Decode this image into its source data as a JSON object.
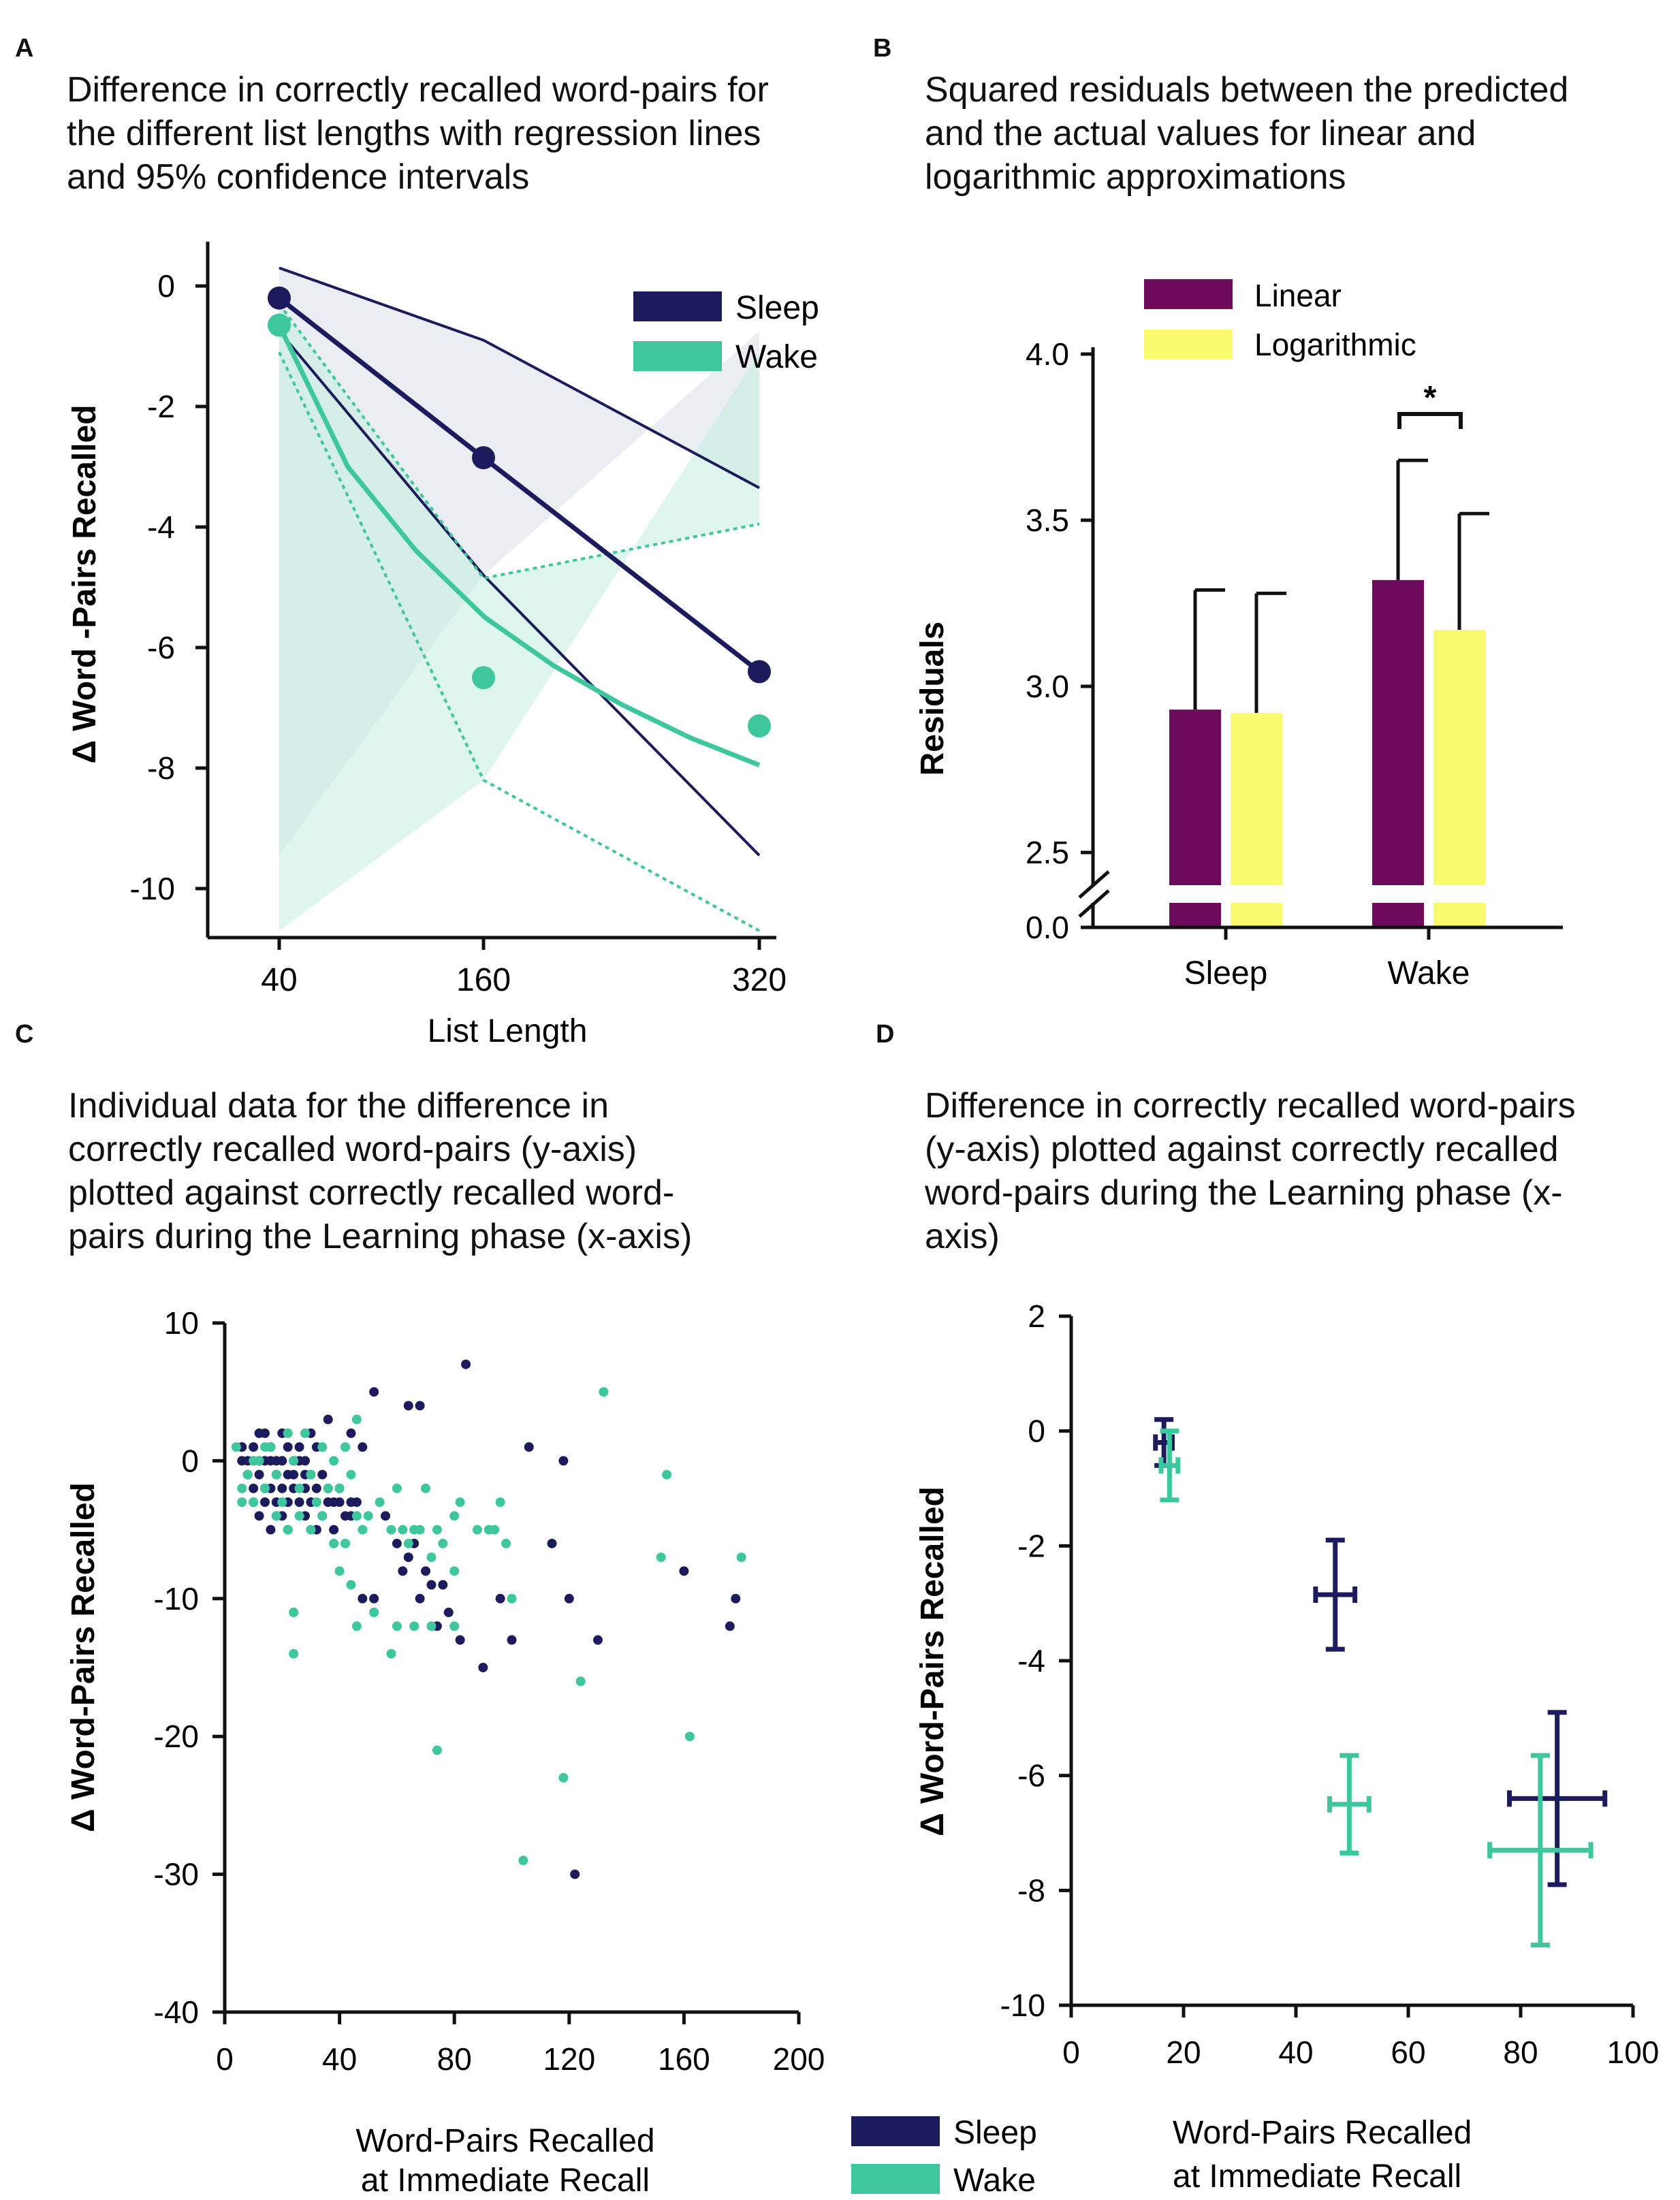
{
  "colors": {
    "sleep": "#1b1b5e",
    "wake": "#3ec79d",
    "linear": "#6d0a5b",
    "logarithmic": "#fafa6e",
    "axis": "#111111"
  },
  "panels": {
    "A": {
      "letter": "A",
      "title": "Difference in correctly recalled word-pairs for\nthe different list lengths with regression lines\nand 95% confidence intervals",
      "chart_data": {
        "type": "line",
        "xlabel": "List Length",
        "ylabel": "Δ Word -Pairs Recalled",
        "categories": [
          "40",
          "160",
          "320"
        ],
        "ylim": [
          -10.8,
          0.8
        ],
        "yticks": [
          "0",
          "-2",
          "-4",
          "-6",
          "-8",
          "-10"
        ],
        "ytick_values": [
          0,
          -2,
          -4,
          -6,
          -8,
          -10
        ],
        "legend": [
          "Sleep",
          "Wake"
        ],
        "series": [
          {
            "name": "Sleep",
            "means": [
              -0.2,
              -2.85,
              -6.4
            ],
            "regression": [
              -0.2,
              -2.85,
              -6.4
            ],
            "ci_upper": [
              0.3,
              -0.9,
              -3.35
            ],
            "ci_lower": [
              -0.75,
              -4.8,
              -9.45
            ]
          },
          {
            "name": "Wake",
            "means": [
              -0.65,
              -6.5,
              -7.3
            ],
            "regression_curve": [
              [
                40,
                -0.65
              ],
              [
                80,
                -3.0
              ],
              [
                120,
                -4.4
              ],
              [
                160,
                -5.5
              ],
              [
                200,
                -6.3
              ],
              [
                240,
                -6.95
              ],
              [
                280,
                -7.5
              ],
              [
                320,
                -7.95
              ]
            ],
            "ci_upper": [
              -0.3,
              -4.85,
              -3.95
            ],
            "ci_lower": [
              -1.1,
              -8.2,
              -10.7
            ]
          }
        ]
      }
    },
    "B": {
      "letter": "B",
      "title": "Squared residuals between the predicted\nand the actual values for linear and\nlogarithmic approximations",
      "chart_data": {
        "type": "bar",
        "ylabel": "Residuals",
        "categories": [
          "Sleep",
          "Wake"
        ],
        "yticks": [
          "4.0",
          "3.5",
          "3.0",
          "2.5",
          "0.0"
        ],
        "ytick_values": [
          4.0,
          3.5,
          3.0,
          2.5,
          0.0
        ],
        "ylim_break": [
          0.0,
          2.5
        ],
        "ylim": [
          2.28,
          4.0
        ],
        "series": [
          {
            "name": "Linear",
            "values": [
              2.93,
              3.32
            ],
            "errors": [
              0.36,
              0.36
            ]
          },
          {
            "name": "Logarithmic",
            "values": [
              2.92,
              3.17
            ],
            "errors": [
              0.36,
              0.35
            ]
          }
        ],
        "annotation": "*"
      }
    },
    "C": {
      "letter": "C",
      "title": "Individual data for the difference in\ncorrectly recalled word-pairs (y-axis)\nplotted against correctly recalled word-\npairs during the Learning phase (x-axis)",
      "chart_data": {
        "type": "scatter",
        "xlabel_line1": "Word-Pairs Recalled",
        "xlabel_line2": "at Immediate Recall",
        "ylabel": "Δ Word-Pairs Recalled",
        "xlim": [
          0,
          200
        ],
        "ylim": [
          -40,
          10
        ],
        "xticks": [
          "0",
          "40",
          "80",
          "120",
          "160",
          "200"
        ],
        "xtick_values": [
          0,
          40,
          80,
          120,
          160,
          200
        ],
        "yticks": [
          "10",
          "0",
          "-10",
          "-20",
          "-30",
          "-40"
        ],
        "ytick_values": [
          10,
          0,
          -10,
          -20,
          -30,
          -40
        ],
        "series": [
          {
            "name": "Sleep",
            "points": [
              [
                84,
                7
              ],
              [
                52,
                5
              ],
              [
                64,
                4
              ],
              [
                68,
                4
              ],
              [
                36,
                3
              ],
              [
                44,
                2
              ],
              [
                48,
                1
              ],
              [
                106,
                1
              ],
              [
                118,
                0
              ],
              [
                6,
                1
              ],
              [
                10,
                1
              ],
              [
                12,
                2
              ],
              [
                14,
                2
              ],
              [
                16,
                1
              ],
              [
                18,
                0
              ],
              [
                20,
                2
              ],
              [
                22,
                1
              ],
              [
                24,
                0
              ],
              [
                26,
                1
              ],
              [
                28,
                0
              ],
              [
                30,
                2
              ],
              [
                32,
                1
              ],
              [
                6,
                0
              ],
              [
                8,
                0
              ],
              [
                10,
                0
              ],
              [
                12,
                0
              ],
              [
                14,
                0
              ],
              [
                16,
                0
              ],
              [
                18,
                -1
              ],
              [
                20,
                0
              ],
              [
                22,
                -1
              ],
              [
                24,
                -1
              ],
              [
                26,
                0
              ],
              [
                28,
                -1
              ],
              [
                30,
                -1
              ],
              [
                32,
                -2
              ],
              [
                34,
                -1
              ],
              [
                36,
                -2
              ],
              [
                38,
                -3
              ],
              [
                8,
                -1
              ],
              [
                10,
                -2
              ],
              [
                12,
                -1
              ],
              [
                14,
                -2
              ],
              [
                16,
                -2
              ],
              [
                18,
                -3
              ],
              [
                20,
                -2
              ],
              [
                22,
                -3
              ],
              [
                24,
                -2
              ],
              [
                26,
                -3
              ],
              [
                28,
                -2
              ],
              [
                30,
                -3
              ],
              [
                34,
                -4
              ],
              [
                36,
                -3
              ],
              [
                40,
                -2
              ],
              [
                42,
                -4
              ],
              [
                44,
                -3
              ],
              [
                10,
                -3
              ],
              [
                12,
                -4
              ],
              [
                14,
                -3
              ],
              [
                16,
                -5
              ],
              [
                18,
                -4
              ],
              [
                20,
                -4
              ],
              [
                22,
                -5
              ],
              [
                28,
                -4
              ],
              [
                32,
                -5
              ],
              [
                38,
                -5
              ],
              [
                40,
                -3
              ],
              [
                44,
                -4
              ],
              [
                46,
                -3
              ],
              [
                56,
                -4
              ],
              [
                60,
                -6
              ],
              [
                64,
                -7
              ],
              [
                66,
                -6
              ],
              [
                70,
                -8
              ],
              [
                72,
                -9
              ],
              [
                62,
                -8
              ],
              [
                68,
                -10
              ],
              [
                48,
                -10
              ],
              [
                52,
                -10
              ],
              [
                76,
                -9
              ],
              [
                78,
                -11
              ],
              [
                74,
                -12
              ],
              [
                82,
                -13
              ],
              [
                90,
                -15
              ],
              [
                96,
                -10
              ],
              [
                100,
                -13
              ],
              [
                114,
                -6
              ],
              [
                130,
                -13
              ],
              [
                120,
                -10
              ],
              [
                160,
                -8
              ],
              [
                176,
                -12
              ],
              [
                178,
                -10
              ],
              [
                122,
                -30
              ]
            ]
          },
          {
            "name": "Wake",
            "points": [
              [
                132,
                5
              ],
              [
                46,
                3
              ],
              [
                154,
                -1
              ],
              [
                94,
                -5
              ],
              [
                152,
                -7
              ],
              [
                162,
                -20
              ],
              [
                180,
                -7
              ],
              [
                118,
                -23
              ],
              [
                104,
                -29
              ],
              [
                124,
                -16
              ],
              [
                100,
                -10
              ],
              [
                74,
                -21
              ],
              [
                4,
                1
              ],
              [
                6,
                -2
              ],
              [
                8,
                -1
              ],
              [
                10,
                -3
              ],
              [
                12,
                0
              ],
              [
                14,
                -2
              ],
              [
                16,
                1
              ],
              [
                18,
                -1
              ],
              [
                20,
                -3
              ],
              [
                22,
                2
              ],
              [
                24,
                0
              ],
              [
                26,
                -2
              ],
              [
                28,
                2
              ],
              [
                30,
                -1
              ],
              [
                32,
                -3
              ],
              [
                34,
                1
              ],
              [
                36,
                -2
              ],
              [
                38,
                0
              ],
              [
                40,
                -2
              ],
              [
                42,
                1
              ],
              [
                44,
                -1
              ],
              [
                46,
                -4
              ],
              [
                6,
                -3
              ],
              [
                10,
                0
              ],
              [
                14,
                1
              ],
              [
                18,
                -4
              ],
              [
                22,
                -5
              ],
              [
                26,
                -4
              ],
              [
                30,
                -5
              ],
              [
                34,
                -4
              ],
              [
                38,
                -6
              ],
              [
                42,
                -6
              ],
              [
                48,
                -5
              ],
              [
                50,
                -4
              ],
              [
                54,
                -3
              ],
              [
                40,
                -8
              ],
              [
                44,
                -9
              ],
              [
                58,
                -5
              ],
              [
                60,
                -2
              ],
              [
                62,
                -5
              ],
              [
                64,
                -6
              ],
              [
                66,
                -5
              ],
              [
                68,
                -5
              ],
              [
                70,
                -2
              ],
              [
                72,
                -7
              ],
              [
                74,
                -5
              ],
              [
                76,
                -6
              ],
              [
                80,
                -8
              ],
              [
                88,
                -5
              ],
              [
                92,
                -5
              ],
              [
                82,
                -3
              ],
              [
                80,
                -4
              ],
              [
                96,
                -3
              ],
              [
                98,
                -6
              ],
              [
                24,
                -11
              ],
              [
                24,
                -14
              ],
              [
                58,
                -14
              ],
              [
                60,
                -12
              ],
              [
                66,
                -12
              ],
              [
                72,
                -12
              ],
              [
                80,
                -12
              ],
              [
                46,
                -12
              ],
              [
                52,
                -11
              ]
            ]
          }
        ]
      }
    },
    "D": {
      "letter": "D",
      "title": "Difference in correctly recalled word-pairs\n(y-axis) plotted against correctly recalled\nword-pairs during the Learning phase (x-\naxis)",
      "chart_data": {
        "type": "scatter",
        "xlabel_line1": "Word-Pairs Recalled",
        "xlabel_line2": "at Immediate Recall",
        "ylabel": "Δ Word-Pairs Recalled",
        "xlim": [
          0,
          100
        ],
        "ylim": [
          -10,
          2
        ],
        "xticks": [
          "0",
          "20",
          "40",
          "60",
          "80",
          "100"
        ],
        "xtick_values": [
          0,
          20,
          40,
          60,
          80,
          100
        ],
        "yticks": [
          "2",
          "0",
          "-2",
          "-4",
          "-6",
          "-8",
          "-10"
        ],
        "ytick_values": [
          2,
          0,
          -2,
          -4,
          -6,
          -8,
          -10
        ],
        "series": [
          {
            "name": "Sleep",
            "points": [
              {
                "x": 16.5,
                "y": -0.2,
                "xerr": 1.5,
                "yerr": 0.4
              },
              {
                "x": 47,
                "y": -2.85,
                "xerr": 3.5,
                "yerr": 0.95
              },
              {
                "x": 86.5,
                "y": -6.4,
                "xerr": 8.5,
                "yerr": 1.5
              }
            ]
          },
          {
            "name": "Wake",
            "points": [
              {
                "x": 17.5,
                "y": -0.6,
                "xerr": 1.5,
                "yerr": 0.6
              },
              {
                "x": 49.5,
                "y": -6.5,
                "xerr": 3.5,
                "yerr": 0.85
              },
              {
                "x": 83.5,
                "y": -7.3,
                "xerr": 9.0,
                "yerr": 1.65
              }
            ]
          }
        ]
      }
    }
  },
  "bottom_legend": [
    "Sleep",
    "Wake"
  ]
}
